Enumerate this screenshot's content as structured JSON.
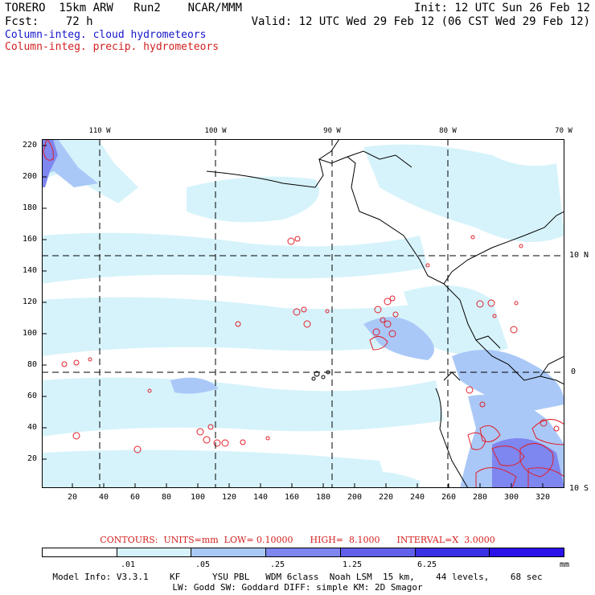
{
  "header": {
    "line1_left": "TORERO  15km ARW   Run2    NCAR/MMM",
    "line1_right": "Init: 12 UTC Sun 26 Feb 12",
    "line2_left": "Fcst:    72 h",
    "line2_right": "Valid: 12 UTC Wed 29 Feb 12 (06 CST Wed 29 Feb 12)",
    "field1": "Column-integ. cloud hydrometeors",
    "field2": "Column-integ. precip. hydrometeors"
  },
  "axes": {
    "left_ticks": [
      "220",
      "200",
      "180",
      "160",
      "140",
      "120",
      "100",
      "80",
      "60",
      "40",
      "20"
    ],
    "bottom_ticks": [
      "20",
      "40",
      "60",
      "80",
      "100",
      "120",
      "140",
      "160",
      "180",
      "200",
      "220",
      "240",
      "260",
      "280",
      "300",
      "320"
    ],
    "top_ticks": [
      "110 W",
      "100 W",
      "90 W",
      "80 W",
      "70 W"
    ],
    "right_ticks": [
      "10 N",
      "0",
      "10 S"
    ]
  },
  "contours": {
    "text": "CONTOURS:  UNITS=mm  LOW= 0.10000      HIGH=  8.1000      INTERVAL=X  3.0000"
  },
  "colorbar": {
    "colors": [
      "#ffffff",
      "#d6f3fb",
      "#aac8f7",
      "#7e86f0",
      "#6060ea",
      "#3a30e4",
      "#2a12e8"
    ],
    "labels": [
      ".01",
      ".05",
      ".25",
      "1.25",
      "6.25"
    ],
    "units": "mm"
  },
  "footer": {
    "line1": "Model Info: V3.3.1    KF      YSU PBL   WDM 6class  Noah LSM  15 km,    44 levels,    68 sec",
    "line2": "LW: Godd SW: Goddard DIFF: simple KM: 2D Smagor"
  },
  "colors": {
    "cloud_light": "#d6f3fb",
    "cloud_mid": "#aac8f7",
    "cloud_high": "#7e86f0",
    "precip_contour": "#e0202a"
  }
}
